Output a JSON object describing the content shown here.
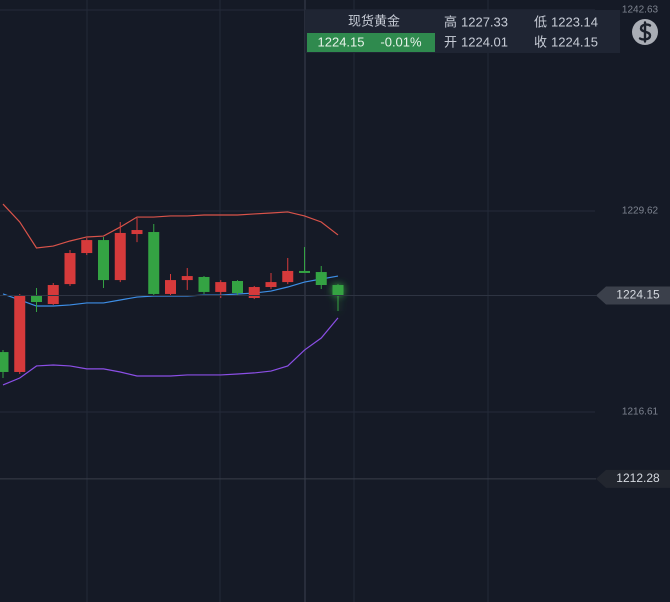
{
  "chart_data": {
    "type": "candlestick",
    "quote": {
      "name": "现货黄金",
      "price": 1224.15,
      "change": "-0.01%",
      "high_label": "高",
      "high": 1227.33,
      "low_label": "低",
      "low": 1223.14,
      "open_label": "开",
      "open": 1224.01,
      "close_label": "收",
      "close": 1224.15
    },
    "categories": [
      null,
      null,
      null,
      null,
      null,
      null,
      null,
      null,
      null,
      null,
      null,
      null,
      null,
      null,
      null,
      null,
      null,
      null,
      null,
      null,
      null
    ],
    "open": [
      1220.49,
      1219.2,
      1224.12,
      1223.6,
      1224.89,
      1226.9,
      1227.74,
      1225.15,
      1228.13,
      1228.26,
      1224.25,
      1225.15,
      1225.35,
      1224.38,
      1225.09,
      1223.99,
      1224.7,
      1225.02,
      1225.74,
      1225.67,
      1224.83
    ],
    "high": [
      1220.62,
      1224.25,
      1224.64,
      1224.96,
      1227.1,
      1227.87,
      1227.94,
      1228.91,
      1229.17,
      1228.78,
      1225.54,
      1225.93,
      1225.41,
      1225.15,
      1225.15,
      1224.77,
      1225.61,
      1226.58,
      1227.29,
      1226.06,
      1224.89
    ],
    "low": [
      1218.81,
      1219.07,
      1223.08,
      1223.54,
      1224.77,
      1226.77,
      1224.64,
      1225.02,
      1227.61,
      1224.12,
      1224.12,
      1224.51,
      1224.25,
      1223.99,
      1224.18,
      1223.92,
      1224.57,
      1224.89,
      1225.61,
      1224.57,
      1223.15
    ],
    "close": [
      1219.2,
      1224.12,
      1223.73,
      1224.83,
      1226.9,
      1227.74,
      1225.15,
      1228.2,
      1228.39,
      1224.25,
      1225.15,
      1225.41,
      1224.38,
      1225.02,
      1224.31,
      1224.7,
      1225.02,
      1225.74,
      1225.61,
      1224.83,
      1224.15
    ],
    "up_color": "#d63a3b",
    "down_color": "#34a343",
    "overlays": [
      {
        "color": "#d9534a",
        "values": [
          1230.07,
          1228.91,
          1227.23,
          1227.35,
          1227.68,
          1227.94,
          1228.0,
          1228.58,
          1229.23,
          1229.23,
          1229.3,
          1229.3,
          1229.36,
          1229.36,
          1229.36,
          1229.43,
          1229.49,
          1229.56,
          1229.3,
          1228.91,
          1228.07
        ]
      },
      {
        "color": "#3d8ee6",
        "values": [
          1224.25,
          1223.86,
          1223.47,
          1223.47,
          1223.54,
          1223.67,
          1223.67,
          1223.86,
          1224.05,
          1224.12,
          1224.12,
          1224.12,
          1224.18,
          1224.18,
          1224.25,
          1224.31,
          1224.44,
          1224.7,
          1225.02,
          1225.22,
          1225.41
        ]
      },
      {
        "color": "#8b4fe6",
        "values": [
          1218.36,
          1218.81,
          1219.59,
          1219.65,
          1219.59,
          1219.4,
          1219.4,
          1219.2,
          1218.94,
          1218.94,
          1218.94,
          1219.01,
          1219.01,
          1219.01,
          1219.07,
          1219.14,
          1219.26,
          1219.59,
          1220.62,
          1221.4,
          1222.7
        ]
      }
    ],
    "ylim": [
      1204.31,
      1243.28
    ],
    "yticks": [
      1242.63,
      1229.62,
      1216.61
    ],
    "price_tags": [
      1224.15,
      1212.28
    ],
    "grid": true
  }
}
